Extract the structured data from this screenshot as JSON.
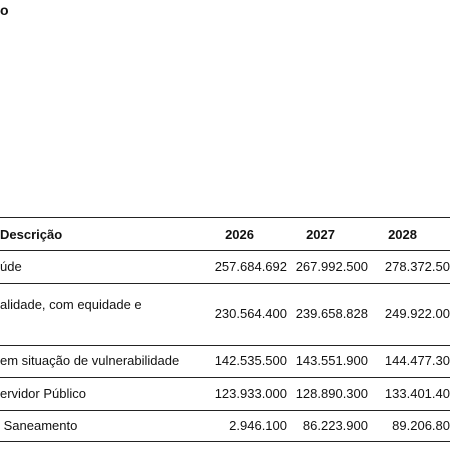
{
  "header": {
    "fragment": "o"
  },
  "table": {
    "columns": [
      "Descrição",
      "2026",
      "2027",
      "2028"
    ],
    "rows": [
      [
        "úde",
        "257.684.692",
        "267.992.500",
        "278.372.50"
      ],
      [
        "alidade, com equidade e",
        "230.564.400",
        "239.658.828",
        "249.922.00"
      ],
      [
        "em situação de vulnerabilidade",
        "142.535.500",
        "143.551.900",
        "144.477.30"
      ],
      [
        "ervidor Público",
        "123.933.000",
        "128.890.300",
        "133.401.40"
      ],
      [
        " Saneamento",
        "2.946.100",
        "86.223.900",
        "89.206.80"
      ]
    ]
  }
}
